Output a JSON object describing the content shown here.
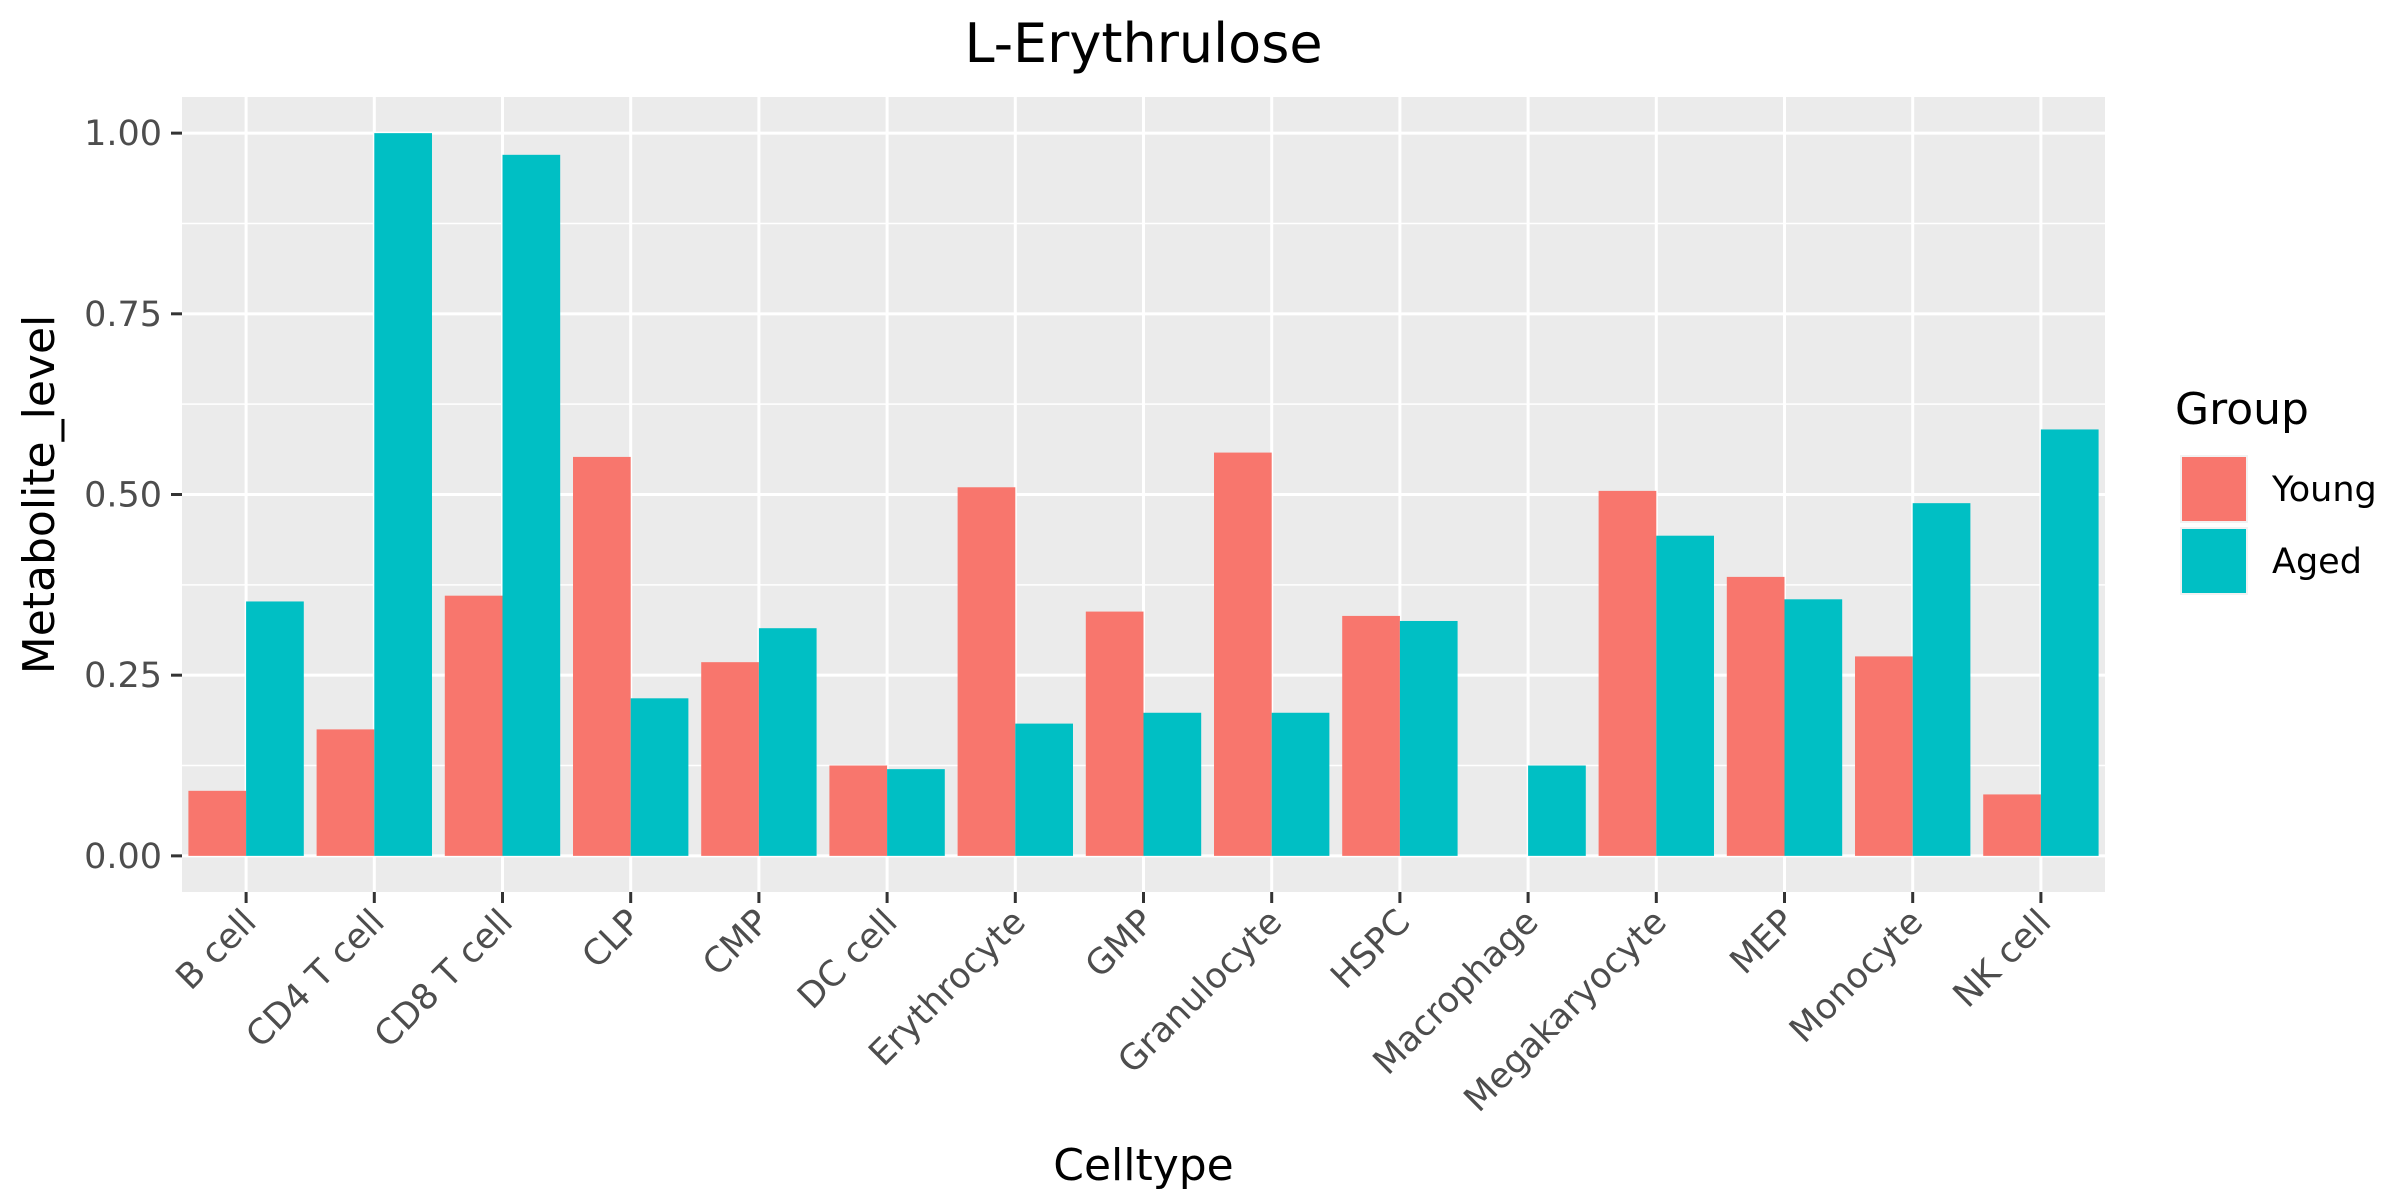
{
  "chart_data": {
    "type": "bar",
    "title": "L-Erythrulose",
    "xlabel": "Celltype",
    "ylabel": "Metabolite_level",
    "categories": [
      "B cell",
      "CD4 T cell",
      "CD8 T cell",
      "CLP",
      "CMP",
      "DC cell",
      "Erythrocyte",
      "GMP",
      "Granulocyte",
      "HSPC",
      "Macrophage",
      "Megakaryocyte",
      "MEP",
      "Monocyte",
      "NK cell"
    ],
    "series": [
      {
        "name": "Young",
        "color": "#f8766d",
        "values": [
          0.09,
          0.175,
          0.36,
          0.552,
          0.268,
          0.125,
          0.51,
          0.338,
          0.558,
          0.332,
          0,
          0.505,
          0.386,
          0.276,
          0.085
        ]
      },
      {
        "name": "Aged",
        "color": "#00bfc4",
        "values": [
          0.352,
          1.0,
          0.97,
          0.218,
          0.315,
          0.12,
          0.183,
          0.198,
          0.198,
          0.325,
          0.125,
          0.443,
          0.355,
          0.488,
          0.59
        ]
      }
    ],
    "ylim": [
      -0.05,
      1.05
    ],
    "yticks": [
      0,
      0.25,
      0.5,
      0.75,
      1.0
    ],
    "ytick_labels": [
      "0.00",
      "0.25",
      "0.50",
      "0.75",
      "1.00"
    ],
    "legend": {
      "title": "Group",
      "position": "right"
    },
    "grid": true
  }
}
